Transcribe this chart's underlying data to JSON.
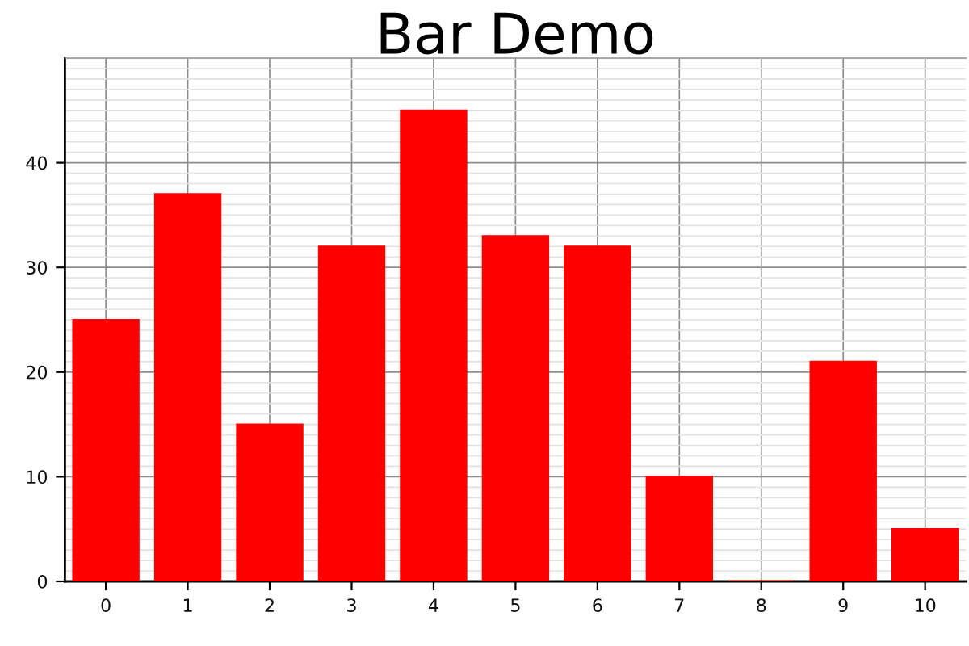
{
  "chart_data": {
    "type": "bar",
    "title": "Bar Demo",
    "categories": [
      "0",
      "1",
      "2",
      "3",
      "4",
      "5",
      "6",
      "7",
      "8",
      "9",
      "10"
    ],
    "values": [
      25,
      37,
      15,
      32,
      45,
      33,
      32,
      10,
      0,
      21,
      5
    ],
    "color": "#ff0000",
    "ylim": [
      0,
      50
    ],
    "yticks": [
      0,
      10,
      20,
      30,
      40
    ],
    "grid": true
  }
}
